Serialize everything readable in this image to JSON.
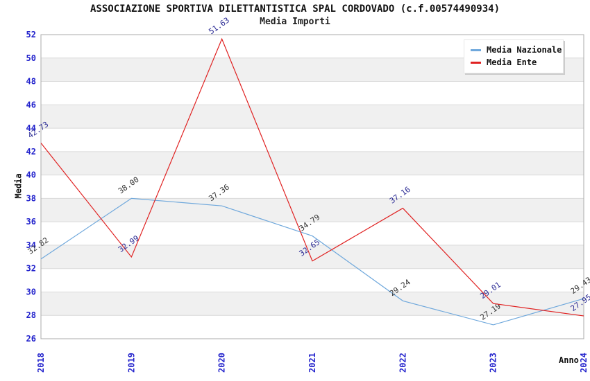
{
  "chart_data": {
    "type": "line",
    "title": "ASSOCIAZIONE SPORTIVA DILETTANTISTICA SPAL CORDOVADO (c.f.00574490934)",
    "subtitle": "Media Importi",
    "xlabel": "Anno",
    "ylabel": "Media",
    "categories": [
      "2018",
      "2019",
      "2020",
      "2021",
      "2022",
      "2023",
      "2024"
    ],
    "ylim": [
      26,
      52
    ],
    "ytick_step": 2,
    "grid": true,
    "legend_position": "top-right",
    "series": [
      {
        "name": "Media Nazionale",
        "color": "#6FA8DC",
        "label_color": "#333333",
        "values": [
          32.82,
          38.0,
          37.36,
          34.79,
          29.24,
          27.19,
          29.43
        ]
      },
      {
        "name": "Media Ente",
        "color": "#E02222",
        "label_color": "#2A2A94",
        "values": [
          42.73,
          32.99,
          51.63,
          32.65,
          37.16,
          29.01,
          27.95
        ]
      }
    ],
    "styles": {
      "tick_label_color": "#2222CC",
      "band_color_even": "#ffffff",
      "band_color_odd": "#f0f0f0",
      "gridline_color": "#d9d9d9",
      "plot_border_color": "#ababab",
      "title_color": "#111111"
    }
  }
}
